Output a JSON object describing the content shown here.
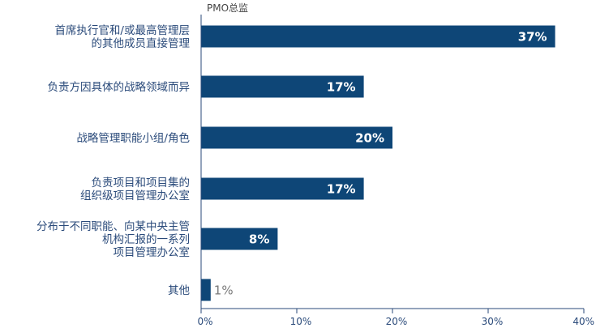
{
  "chart_data": {
    "type": "bar",
    "orientation": "horizontal",
    "series_title": "PMO总监",
    "categories": [
      [
        "首席执行官和/或最高管理层",
        "的其他成员直接管理"
      ],
      [
        "负责方因具体的战略领域而异"
      ],
      [
        "战略管理职能小组/角色"
      ],
      [
        "负责项目和项目集的",
        "组织级项目管理办公室"
      ],
      [
        "分布于不同职能、向某中央主管",
        "机构汇报的一系列",
        "项目管理办公室"
      ],
      [
        "其他"
      ]
    ],
    "values": [
      37,
      17,
      20,
      17,
      8,
      1
    ],
    "value_labels": [
      "37%",
      "17%",
      "20%",
      "17%",
      "8%",
      "1%"
    ],
    "xlim": [
      0,
      40
    ],
    "xticks": [
      0,
      10,
      20,
      30,
      40
    ],
    "xtick_labels": [
      "0%",
      "10%",
      "20%",
      "30%",
      "40%"
    ],
    "grid": false,
    "legend": false,
    "colors": {
      "bar": "#0e4677",
      "axis": "#2a4a7a",
      "label_text": "#2a4a7a",
      "inside_value": "#ffffff",
      "outside_value": "#7a7a7a"
    }
  }
}
